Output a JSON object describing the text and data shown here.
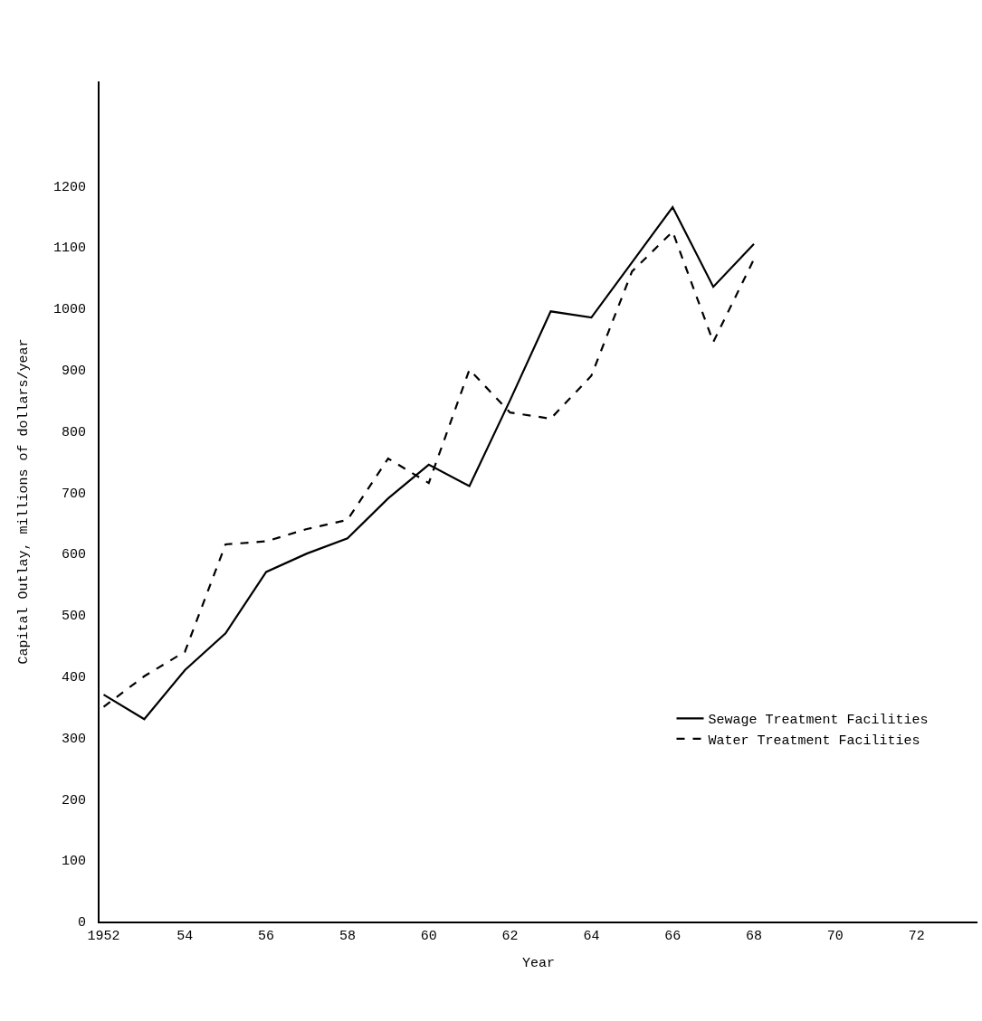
{
  "chart_data": {
    "type": "line",
    "xlabel": "Year",
    "ylabel": "Capital Outlay, millions of dollars/year",
    "x": [
      1952,
      1953,
      1954,
      1955,
      1956,
      1957,
      1958,
      1959,
      1960,
      1961,
      1962,
      1963,
      1964,
      1965,
      1966,
      1967,
      1968
    ],
    "series": [
      {
        "name": "Sewage Treatment Facilities",
        "color": "#000000",
        "line_style": "solid",
        "values": [
          370,
          330,
          410,
          470,
          570,
          600,
          625,
          690,
          745,
          710,
          850,
          995,
          985,
          1075,
          1165,
          1035,
          1105
        ]
      },
      {
        "name": "Water Treatment Facilities",
        "color": "#000000",
        "line_style": "dashed",
        "values": [
          350,
          400,
          440,
          615,
          620,
          640,
          655,
          755,
          715,
          900,
          830,
          820,
          890,
          1060,
          1125,
          945,
          1080
        ]
      }
    ],
    "xlim": [
      1951.9,
      1973.5
    ],
    "ylim": [
      0,
      1370
    ],
    "xticks": [
      {
        "value": 1952,
        "label": "1952"
      },
      {
        "value": 1954,
        "label": "54"
      },
      {
        "value": 1956,
        "label": "56"
      },
      {
        "value": 1958,
        "label": "58"
      },
      {
        "value": 1960,
        "label": "60"
      },
      {
        "value": 1962,
        "label": "62"
      },
      {
        "value": 1964,
        "label": "64"
      },
      {
        "value": 1966,
        "label": "66"
      },
      {
        "value": 1968,
        "label": "68"
      },
      {
        "value": 1970,
        "label": "70"
      },
      {
        "value": 1972,
        "label": "72"
      }
    ],
    "yticks": [
      0,
      100,
      200,
      300,
      400,
      500,
      600,
      700,
      800,
      900,
      1000,
      1100,
      1200
    ],
    "grid": false,
    "legend": "bottom right",
    "marker": "none"
  }
}
